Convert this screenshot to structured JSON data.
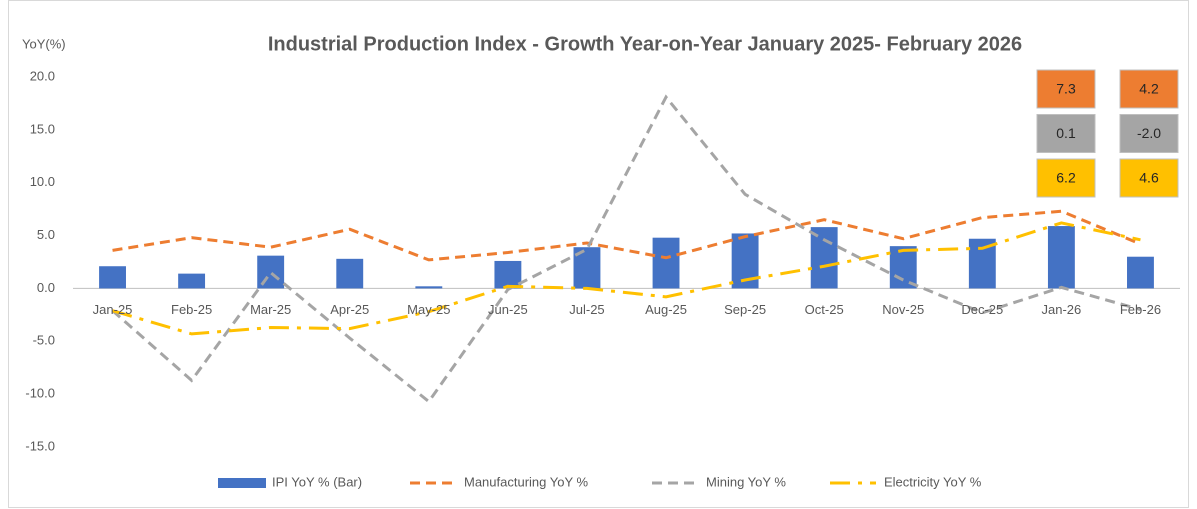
{
  "chart_data": {
    "type": "bar",
    "title": "Industrial Production Index - Growth Year-on-Year January 2025- February 2026",
    "y_label": "YoY(%)",
    "categories": [
      "Jan-25",
      "Feb-25",
      "Mar-25",
      "Apr-25",
      "May-25",
      "Jun-25",
      "Jul-25",
      "Aug-25",
      "Sep-25",
      "Oct-25",
      "Nov-25",
      "Dec-25",
      "Jan-26",
      "Feb-26"
    ],
    "series": [
      {
        "name": "IPI YoY % (Bar)",
        "type": "bar",
        "color": "#4472c4",
        "values": [
          2.1,
          1.4,
          3.1,
          2.8,
          0.2,
          2.6,
          3.9,
          4.8,
          5.2,
          5.8,
          4.0,
          4.7,
          5.9,
          3.0
        ]
      },
      {
        "name": "Manufacturing YoY %",
        "type": "line",
        "color": "#ed7d31",
        "values": [
          3.6,
          4.8,
          3.9,
          5.6,
          2.7,
          3.4,
          4.3,
          2.9,
          4.9,
          6.5,
          4.7,
          6.7,
          7.3,
          4.2
        ],
        "value_labels": [
          null,
          null,
          null,
          null,
          null,
          null,
          null,
          null,
          null,
          null,
          null,
          null,
          "7.3",
          "4.2"
        ]
      },
      {
        "name": "Mining YoY %",
        "type": "line",
        "color": "#a5a5a5",
        "values": [
          -2.1,
          -8.7,
          1.5,
          -4.7,
          -10.7,
          -0.1,
          3.7,
          18.1,
          8.9,
          4.6,
          0.8,
          -2.3,
          0.1,
          -2.0
        ],
        "value_labels": [
          null,
          null,
          null,
          null,
          null,
          null,
          null,
          null,
          null,
          null,
          null,
          null,
          "0.1",
          "-2.0"
        ]
      },
      {
        "name": "Electricity  YoY %",
        "type": "line",
        "color": "#ffc000",
        "values": [
          -2.1,
          -4.3,
          -3.7,
          -3.8,
          -2.2,
          0.2,
          0.0,
          -0.8,
          0.8,
          2.1,
          3.6,
          3.8,
          6.2,
          4.6
        ],
        "value_labels": [
          null,
          null,
          null,
          null,
          null,
          null,
          null,
          null,
          null,
          null,
          null,
          null,
          "6.2",
          "4.6"
        ]
      }
    ],
    "ylim": [
      -15,
      20
    ],
    "yticks": [
      {
        "value": 20,
        "label": "20.0"
      },
      {
        "value": 15,
        "label": "15.0"
      },
      {
        "value": 10,
        "label": "10.0"
      },
      {
        "value": 5,
        "label": "5.0"
      },
      {
        "value": 0,
        "label": "0.0"
      },
      {
        "value": -5,
        "label": "-5.0"
      },
      {
        "value": -10,
        "label": "-10.0"
      },
      {
        "value": -15,
        "label": "-15.0"
      }
    ],
    "grid": false
  }
}
